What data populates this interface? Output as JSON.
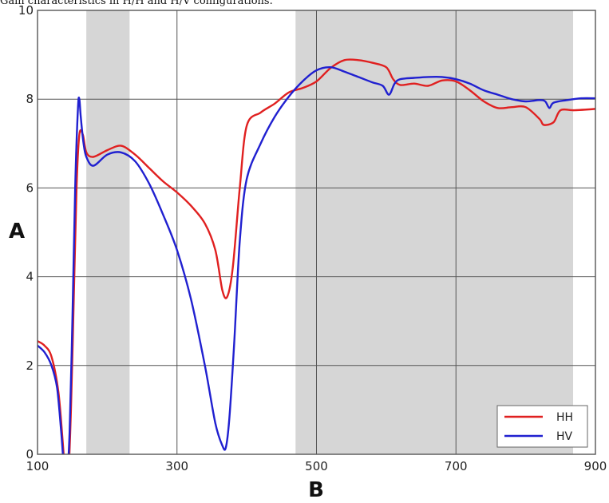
{
  "caption": "Gain characteristics in H/H and H/V configurations.",
  "chart_data": {
    "type": "line",
    "title": "",
    "xlabel": "B",
    "ylabel": "A",
    "xlim": [
      100,
      900
    ],
    "ylim": [
      0,
      10
    ],
    "xticks": [
      100,
      300,
      500,
      700,
      900
    ],
    "yticks": [
      0,
      2,
      4,
      6,
      8,
      10
    ],
    "grid": true,
    "legend_position": "bottom-right",
    "shaded_bands": [
      [
        170,
        232
      ],
      [
        470,
        868
      ]
    ],
    "series": [
      {
        "name": "HH",
        "color": "#e02020",
        "x": [
          100,
          110,
          120,
          130,
          136,
          140,
          144,
          148,
          152,
          156,
          160,
          165,
          170,
          180,
          200,
          220,
          240,
          260,
          280,
          300,
          320,
          340,
          355,
          365,
          372,
          380,
          390,
          400,
          420,
          440,
          460,
          480,
          500,
          520,
          540,
          560,
          580,
          600,
          610,
          620,
          640,
          660,
          680,
          700,
          720,
          740,
          760,
          780,
          800,
          820,
          826,
          840,
          850,
          870,
          900
        ],
        "y": [
          2.55,
          2.45,
          2.2,
          1.4,
          0.3,
          -0.5,
          -0.5,
          1.0,
          3.5,
          6.0,
          7.2,
          7.2,
          6.8,
          6.7,
          6.85,
          6.95,
          6.75,
          6.45,
          6.15,
          5.9,
          5.6,
          5.2,
          4.6,
          3.7,
          3.55,
          4.2,
          6.0,
          7.4,
          7.7,
          7.9,
          8.15,
          8.25,
          8.4,
          8.7,
          8.88,
          8.88,
          8.82,
          8.72,
          8.45,
          8.32,
          8.35,
          8.3,
          8.42,
          8.4,
          8.2,
          7.95,
          7.8,
          7.82,
          7.82,
          7.55,
          7.42,
          7.48,
          7.75,
          7.75,
          7.78
        ]
      },
      {
        "name": "HV",
        "color": "#2020d0",
        "x": [
          100,
          110,
          120,
          128,
          134,
          138,
          142,
          146,
          150,
          154,
          158,
          160,
          162,
          166,
          170,
          180,
          200,
          220,
          240,
          260,
          280,
          300,
          320,
          340,
          355,
          365,
          370,
          375,
          382,
          390,
          400,
          420,
          440,
          460,
          480,
          500,
          520,
          540,
          560,
          580,
          595,
          604,
          612,
          620,
          640,
          660,
          680,
          700,
          720,
          740,
          760,
          780,
          800,
          820,
          828,
          834,
          840,
          860,
          880,
          900
        ],
        "y": [
          2.45,
          2.3,
          2.0,
          1.5,
          0.5,
          -0.3,
          -0.5,
          0.5,
          3.0,
          6.0,
          7.8,
          8.0,
          7.6,
          7.0,
          6.7,
          6.5,
          6.75,
          6.8,
          6.6,
          6.1,
          5.4,
          4.6,
          3.5,
          2.0,
          0.7,
          0.2,
          0.15,
          0.8,
          2.5,
          4.8,
          6.2,
          7.0,
          7.6,
          8.05,
          8.4,
          8.65,
          8.72,
          8.62,
          8.5,
          8.38,
          8.3,
          8.1,
          8.35,
          8.45,
          8.48,
          8.5,
          8.5,
          8.45,
          8.35,
          8.2,
          8.1,
          8.0,
          7.95,
          7.98,
          7.95,
          7.8,
          7.92,
          7.98,
          8.02,
          8.02
        ]
      }
    ]
  }
}
